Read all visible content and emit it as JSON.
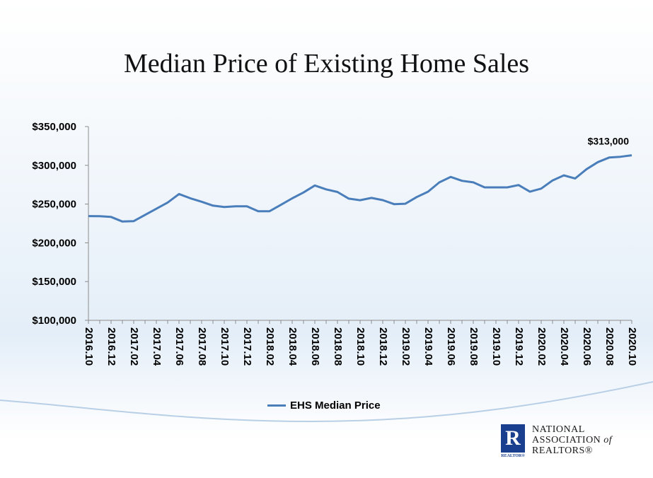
{
  "chart_data": {
    "type": "line",
    "title": "Median Price of Existing Home Sales",
    "x": [
      "2016.10",
      "2016.11",
      "2016.12",
      "2017.01",
      "2017.02",
      "2017.03",
      "2017.04",
      "2017.05",
      "2017.06",
      "2017.07",
      "2017.08",
      "2017.09",
      "2017.10",
      "2017.11",
      "2017.12",
      "2018.01",
      "2018.02",
      "2018.03",
      "2018.04",
      "2018.05",
      "2018.06",
      "2018.07",
      "2018.08",
      "2018.09",
      "2018.10",
      "2018.11",
      "2018.12",
      "2019.01",
      "2019.02",
      "2019.03",
      "2019.04",
      "2019.05",
      "2019.06",
      "2019.07",
      "2019.08",
      "2019.09",
      "2019.10",
      "2019.11",
      "2019.12",
      "2020.01",
      "2020.02",
      "2020.03",
      "2020.04",
      "2020.05",
      "2020.06",
      "2020.07",
      "2020.08",
      "2020.09",
      "2020.10"
    ],
    "x_tick_labels": [
      "2016.10",
      "2016.12",
      "2017.02",
      "2017.04",
      "2017.06",
      "2017.08",
      "2017.10",
      "2017.12",
      "2018.02",
      "2018.04",
      "2018.06",
      "2018.08",
      "2018.10",
      "2018.12",
      "2019.02",
      "2019.04",
      "2019.06",
      "2019.08",
      "2019.10",
      "2019.12",
      "2020.02",
      "2020.04",
      "2020.06",
      "2020.08",
      "2020.10"
    ],
    "series": [
      {
        "name": "EHS Median Price",
        "color": "#4a7ebb",
        "values": [
          234500,
          234300,
          233400,
          227500,
          228000,
          236000,
          244000,
          252000,
          263000,
          257500,
          253000,
          248000,
          246200,
          247200,
          247200,
          240800,
          240800,
          249000,
          257400,
          265000,
          274000,
          269000,
          265600,
          257000,
          255000,
          257900,
          255100,
          249900,
          250500,
          259000,
          266000,
          278000,
          285000,
          280000,
          278000,
          271500,
          271500,
          271500,
          274500,
          266000,
          270000,
          280500,
          287000,
          283000,
          295000,
          304100,
          310000,
          311000,
          313000
        ]
      }
    ],
    "ylim": [
      100000,
      350000
    ],
    "y_ticks": [
      100000,
      150000,
      200000,
      250000,
      300000,
      350000
    ],
    "y_tick_labels": [
      "$100,000",
      "$150,000",
      "$200,000",
      "$250,000",
      "$300,000",
      "$350,000"
    ],
    "annotation": "$313,000",
    "legend": "bottom"
  },
  "legend": {
    "label": "EHS Median Price"
  },
  "logo": {
    "mark": "R",
    "mark_sub": "REALTOR®",
    "line1": "NATIONAL",
    "line2": "ASSOCIATION",
    "line2_suffix": "of",
    "line3": "REALTORS®"
  }
}
